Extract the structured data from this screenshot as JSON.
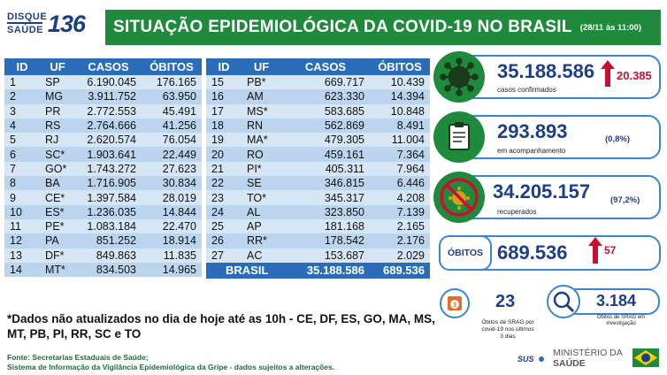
{
  "logo": {
    "disque": "DISQUE",
    "saude": "SAÚDE",
    "number": "136"
  },
  "header": {
    "title": "SITUAÇÃO EPIDEMIOLÓGICA DA COVID-19 NO BRASIL",
    "date": "(28/11 às 11:00)"
  },
  "table_headers": [
    "ID",
    "UF",
    "CASOS",
    "ÓBITOS"
  ],
  "table_left": [
    {
      "id": "1",
      "uf": "SP",
      "casos": "6.190.045",
      "obitos": "176.165"
    },
    {
      "id": "2",
      "uf": "MG",
      "casos": "3.911.752",
      "obitos": "63.950"
    },
    {
      "id": "3",
      "uf": "PR",
      "casos": "2.772.553",
      "obitos": "45.491"
    },
    {
      "id": "4",
      "uf": "RS",
      "casos": "2.764.666",
      "obitos": "41.256"
    },
    {
      "id": "5",
      "uf": "RJ",
      "casos": "2.620.574",
      "obitos": "76.054"
    },
    {
      "id": "6",
      "uf": "SC*",
      "casos": "1.903.641",
      "obitos": "22.449"
    },
    {
      "id": "7",
      "uf": "GO*",
      "casos": "1.743.272",
      "obitos": "27.623"
    },
    {
      "id": "8",
      "uf": "BA",
      "casos": "1.716.905",
      "obitos": "30.834"
    },
    {
      "id": "9",
      "uf": "CE*",
      "casos": "1.397.584",
      "obitos": "28.019"
    },
    {
      "id": "10",
      "uf": "ES*",
      "casos": "1.236.035",
      "obitos": "14.844"
    },
    {
      "id": "11",
      "uf": "PE*",
      "casos": "1.083.184",
      "obitos": "22.470"
    },
    {
      "id": "12",
      "uf": "PA",
      "casos": "851.252",
      "obitos": "18.914"
    },
    {
      "id": "13",
      "uf": "DF*",
      "casos": "849.863",
      "obitos": "11.835"
    },
    {
      "id": "14",
      "uf": "MT*",
      "casos": "834.503",
      "obitos": "14.965"
    }
  ],
  "table_right": [
    {
      "id": "15",
      "uf": "PB*",
      "casos": "669.717",
      "obitos": "10.439"
    },
    {
      "id": "16",
      "uf": "AM",
      "casos": "623.330",
      "obitos": "14.394"
    },
    {
      "id": "17",
      "uf": "MS*",
      "casos": "583.685",
      "obitos": "10.848"
    },
    {
      "id": "18",
      "uf": "RN",
      "casos": "562.869",
      "obitos": "8.491"
    },
    {
      "id": "19",
      "uf": "MA*",
      "casos": "479.305",
      "obitos": "11.004"
    },
    {
      "id": "20",
      "uf": "RO",
      "casos": "459.161",
      "obitos": "7.364"
    },
    {
      "id": "21",
      "uf": "PI*",
      "casos": "405.311",
      "obitos": "7.964"
    },
    {
      "id": "22",
      "uf": "SE",
      "casos": "346.815",
      "obitos": "6.446"
    },
    {
      "id": "23",
      "uf": "TO*",
      "casos": "345.317",
      "obitos": "4.208"
    },
    {
      "id": "24",
      "uf": "AL",
      "casos": "323.850",
      "obitos": "7.139"
    },
    {
      "id": "25",
      "uf": "AP",
      "casos": "181.168",
      "obitos": "2.165"
    },
    {
      "id": "26",
      "uf": "RR*",
      "casos": "178.542",
      "obitos": "2.176"
    },
    {
      "id": "27",
      "uf": "AC",
      "casos": "153.687",
      "obitos": "2.029"
    }
  ],
  "total": {
    "label": "BRASIL",
    "casos": "35.188.586",
    "obitos": "689.536"
  },
  "note": "*Dados não atualizados no dia de hoje até as 10h - CE, DF, ES, GO, MA, MS, MT, PB, PI, RR, SC e TO",
  "source_line1": "Fonte: Secretarias Estaduais de Saúde;",
  "source_line2": "Sistema de Informação da Vigilância Epidemiológica da Gripe - dados sujeitos a alterações.",
  "panel": {
    "confirmados_value": "35.188.586",
    "confirmados_delta": "20.385",
    "confirmados_label": "casos confirmados",
    "acompanhamento_value": "293.893",
    "acompanhamento_pct": "(0,8%)",
    "acompanhamento_label": "em acompanhamento",
    "recuperados_value": "34.205.157",
    "recuperados_pct": "(97,2%)",
    "recuperados_label": "recuperados",
    "obitos_label": "ÓBITOS",
    "obitos_value": "689.536",
    "obitos_delta": "57",
    "srag_value": "23",
    "srag_label1": "Óbitos de SRAG por",
    "srag_label2": "covid-19 nos últimos",
    "srag_label3": "3 dias",
    "investigacao_value": "3.184",
    "investigacao_label1": "Óbitos de SRAG em",
    "investigacao_label2": "investigação",
    "calendar_number": "3"
  },
  "footer": {
    "sus": "SUS",
    "ministerio": "MINISTÉRIO DA",
    "saude": "SAÚDE"
  },
  "colors": {
    "green": "#1f8a3c",
    "blue": "#2b6cb8",
    "navy": "#1d3f86",
    "red": "#c8102e"
  }
}
